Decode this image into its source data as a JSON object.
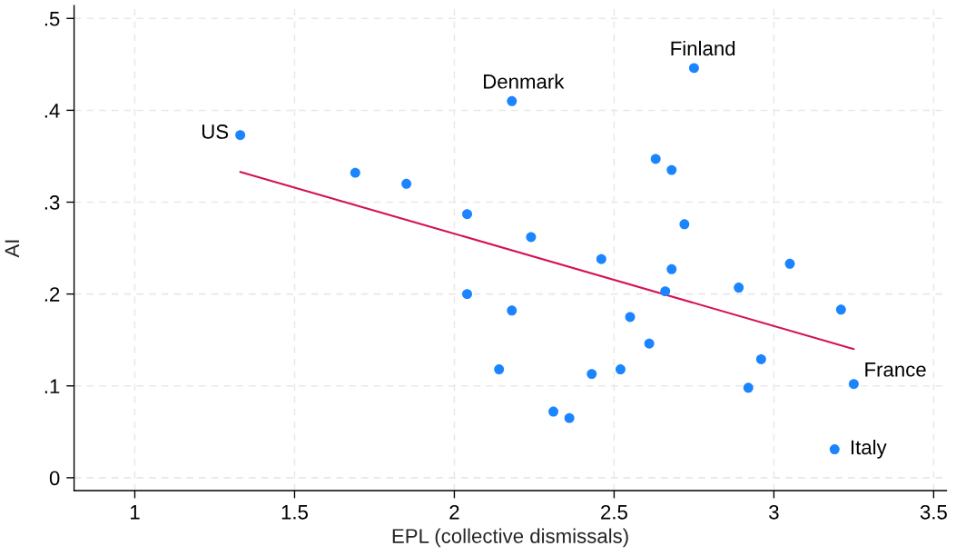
{
  "chart_data": {
    "type": "scatter",
    "xlabel": "EPL (collective dismissals)",
    "ylabel": "AI",
    "series": [
      {
        "color": "#1a85ff",
        "marker": "circle",
        "x": [
          1.33,
          1.69,
          1.85,
          2.04,
          2.04,
          2.14,
          2.18,
          2.18,
          2.24,
          2.31,
          2.36,
          2.43,
          2.46,
          2.52,
          2.55,
          2.61,
          2.63,
          2.66,
          2.68,
          2.68,
          2.72,
          2.75,
          2.89,
          2.92,
          2.96,
          3.05,
          3.21,
          3.19,
          3.25
        ],
        "values": [
          0.373,
          0.332,
          0.32,
          0.287,
          0.2,
          0.118,
          0.41,
          0.182,
          0.262,
          0.072,
          0.065,
          0.113,
          0.238,
          0.118,
          0.175,
          0.146,
          0.347,
          0.203,
          0.335,
          0.227,
          0.276,
          0.446,
          0.207,
          0.098,
          0.129,
          0.233,
          0.183,
          0.031,
          0.102
        ]
      },
      {
        "type": "line",
        "color": "#d41159",
        "marker": "none",
        "x": [
          1.33,
          3.25
        ],
        "values": [
          0.333,
          0.14
        ]
      }
    ],
    "annotations": [
      {
        "text": "US",
        "x": 1.33,
        "y": 0.373
      },
      {
        "text": "Denmark",
        "x": 2.18,
        "y": 0.41
      },
      {
        "text": "Finland",
        "x": 2.75,
        "y": 0.446
      },
      {
        "text": "France",
        "x": 3.25,
        "y": 0.102
      },
      {
        "text": "Italy",
        "x": 3.19,
        "y": 0.031
      }
    ],
    "xlim": [
      0.81,
      3.54
    ],
    "ylim": [
      -0.014,
      0.514
    ],
    "xticks": [
      1,
      1.5,
      2,
      2.5,
      3,
      3.5
    ],
    "yticks": [
      0,
      {
        "value": 0.1,
        "label": ".1"
      },
      {
        "value": 0.2,
        "label": ".2"
      },
      {
        "value": 0.3,
        "label": ".3"
      },
      {
        "value": 0.4,
        "label": ".4"
      },
      {
        "value": 0.5,
        "label": ".5"
      }
    ],
    "grid": true
  }
}
